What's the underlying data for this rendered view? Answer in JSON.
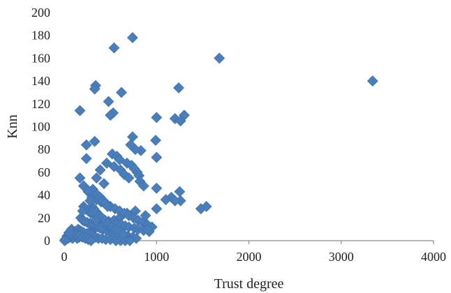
{
  "chart_data": {
    "type": "scatter",
    "title": "",
    "xlabel": "Trust degree",
    "ylabel": "Knn",
    "xlim": [
      0,
      4000
    ],
    "ylim": [
      0,
      200
    ],
    "x_ticks": [
      "0",
      "1000",
      "2000",
      "3000",
      "4000"
    ],
    "y_ticks": [
      "0",
      "20",
      "40",
      "60",
      "80",
      "100",
      "120",
      "140",
      "160",
      "180",
      "200"
    ],
    "grid": false,
    "legend": "none",
    "marker": "diamond",
    "marker_color": "#4a7ebb",
    "series": [
      {
        "x": [
          740,
          540,
          1680,
          3340,
          340,
          330,
          620,
          1240,
          170,
          480,
          530,
          500,
          1300,
          1200,
          1260,
          1000,
          740,
          990,
          330,
          720,
          1000,
          830,
          240,
          770,
          520,
          570,
          600,
          680,
          730,
          760,
          790,
          810,
          240,
          390,
          460,
          540,
          610,
          650,
          700,
          350,
          430,
          820,
          860,
          1000,
          1250,
          1160,
          1100,
          1260,
          1200,
          1000,
          880,
          770,
          680,
          600,
          540,
          480,
          420,
          380,
          320,
          280,
          250,
          220,
          180,
          160,
          140,
          120,
          110,
          100,
          90,
          80,
          70,
          60,
          50,
          40,
          30,
          20,
          10,
          5,
          170,
          210,
          260,
          300,
          350,
          400,
          450,
          500,
          550,
          600,
          650,
          700,
          750,
          800,
          850,
          900,
          950,
          1480,
          1540,
          310,
          330,
          360,
          390,
          420,
          450,
          470,
          210,
          230,
          260,
          290,
          340,
          370,
          400,
          440,
          480,
          520,
          560,
          620,
          660,
          700,
          760,
          800,
          860,
          920,
          180,
          200,
          220,
          250,
          280,
          300,
          330,
          360,
          390,
          420,
          460,
          490,
          530,
          580,
          640,
          690,
          740,
          780,
          150,
          170,
          190,
          210,
          240,
          270,
          310,
          340,
          370,
          410,
          450,
          500,
          560,
          610,
          660,
          710,
          130,
          160,
          200,
          230,
          260,
          290,
          320,
          350,
          380,
          410,
          440,
          480,
          300,
          320,
          350,
          380,
          410,
          440,
          470,
          510,
          550,
          600,
          640,
          280,
          310,
          340,
          260,
          200,
          900
        ],
        "y": [
          178,
          169,
          160,
          140,
          136,
          133,
          130,
          134,
          114,
          122,
          112,
          110,
          110,
          107,
          105,
          108,
          91,
          88,
          87,
          84,
          73,
          79,
          84,
          80,
          76,
          74,
          71,
          68,
          66,
          63,
          60,
          57,
          72,
          62,
          68,
          65,
          62,
          58,
          55,
          55,
          50,
          52,
          48,
          46,
          43,
          38,
          36,
          35,
          35,
          28,
          22,
          26,
          24,
          20,
          18,
          16,
          14,
          12,
          10,
          8,
          6,
          5,
          4,
          3,
          2,
          8,
          4,
          6,
          2,
          10,
          5,
          3,
          7,
          2,
          4,
          1,
          1,
          0,
          55,
          48,
          43,
          38,
          36,
          34,
          32,
          30,
          28,
          26,
          24,
          22,
          20,
          18,
          16,
          14,
          12,
          28,
          30,
          45,
          42,
          40,
          38,
          35,
          33,
          30,
          30,
          28,
          26,
          24,
          22,
          20,
          19,
          18,
          17,
          16,
          15,
          14,
          13,
          12,
          11,
          10,
          9,
          8,
          20,
          18,
          17,
          16,
          15,
          14,
          13,
          12,
          11,
          10,
          9,
          8,
          7,
          6,
          5,
          4,
          3,
          2,
          10,
          9,
          8,
          7,
          6,
          5,
          4,
          3,
          2,
          2,
          1,
          1,
          0,
          0,
          0,
          0,
          5,
          4,
          3,
          2,
          1,
          0,
          25,
          22,
          20,
          18,
          15,
          12,
          30,
          28,
          25,
          22,
          20,
          18,
          15,
          12,
          10,
          8,
          6,
          35,
          25,
          18,
          44,
          26,
          10
        ]
      }
    ]
  }
}
